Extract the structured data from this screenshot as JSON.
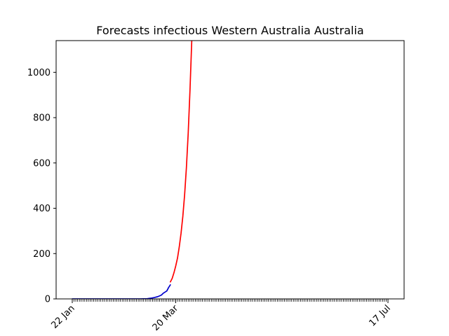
{
  "chart_data": {
    "type": "line",
    "title": "Forecasts infectious Western Australia Australia",
    "xlabel": "",
    "ylabel": "",
    "x_axis": "date",
    "x_start": "2020-01-22",
    "x_end": "2020-07-17",
    "xlim": [
      "2020-01-22",
      "2020-07-17"
    ],
    "ylim": [
      0,
      1140
    ],
    "x_tick_labels": [
      {
        "date": "2020-01-22",
        "label": "22 Jan"
      },
      {
        "date": "2020-03-20",
        "label": "20 Mar"
      },
      {
        "date": "2020-07-17",
        "label": "17 Jul"
      }
    ],
    "y_ticks": [
      0,
      200,
      400,
      600,
      800,
      1000
    ],
    "grid": false,
    "series": [
      {
        "color": "#0000cc",
        "points": [
          [
            "2020-01-22",
            0
          ],
          [
            "2020-02-01",
            0
          ],
          [
            "2020-02-10",
            0
          ],
          [
            "2020-02-20",
            0
          ],
          [
            "2020-02-29",
            0
          ],
          [
            "2020-03-04",
            1
          ],
          [
            "2020-03-06",
            3
          ],
          [
            "2020-03-08",
            6
          ],
          [
            "2020-03-10",
            10
          ],
          [
            "2020-03-12",
            17
          ],
          [
            "2020-03-13",
            25
          ],
          [
            "2020-03-14",
            30
          ],
          [
            "2020-03-15",
            35
          ],
          [
            "2020-03-16",
            50
          ],
          [
            "2020-03-17",
            62
          ]
        ]
      },
      {
        "color": "#ff0000",
        "points": [
          [
            "2020-03-17",
            75
          ],
          [
            "2020-03-18",
            90
          ],
          [
            "2020-03-19",
            115
          ],
          [
            "2020-03-20",
            145
          ],
          [
            "2020-03-21",
            180
          ],
          [
            "2020-03-22",
            230
          ],
          [
            "2020-03-23",
            290
          ],
          [
            "2020-03-24",
            365
          ],
          [
            "2020-03-25",
            460
          ],
          [
            "2020-03-26",
            580
          ],
          [
            "2020-03-27",
            730
          ],
          [
            "2020-03-28",
            920
          ],
          [
            "2020-03-29",
            1140
          ]
        ]
      }
    ]
  }
}
